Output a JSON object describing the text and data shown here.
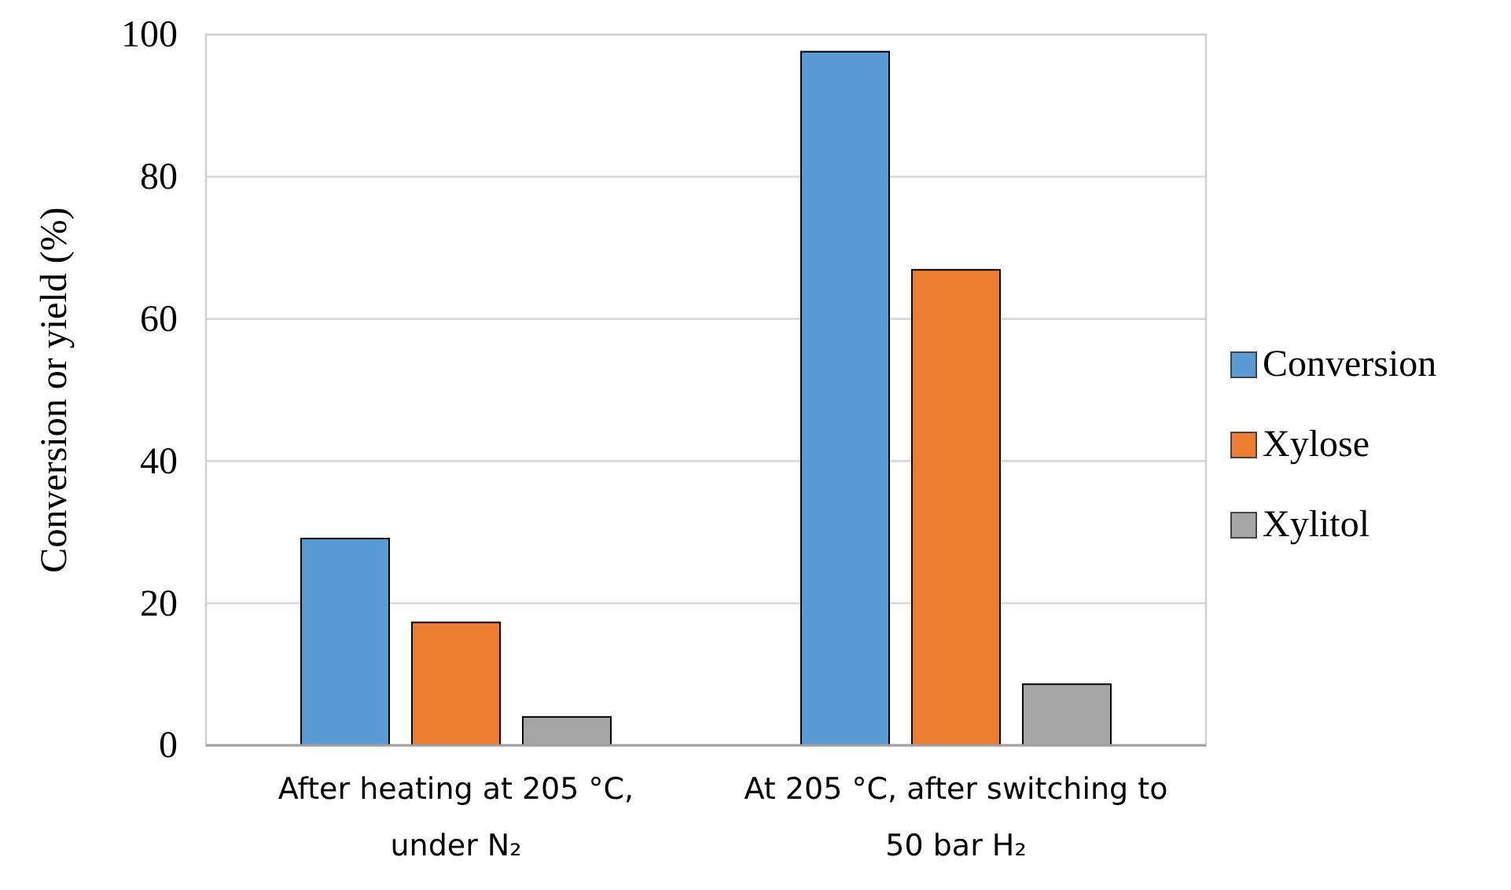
{
  "chart_data": {
    "type": "bar",
    "ylabel": "Conversion or yield (%)",
    "categories": [
      "After heating at 205 °C, under N₂",
      "At 205 °C, after switching to 50 bar H₂"
    ],
    "series": [
      {
        "name": "Conversion",
        "color": "#5b9bd5",
        "values": [
          29.1,
          97.6
        ]
      },
      {
        "name": "Xylose",
        "color": "#ed7d31",
        "values": [
          17.3,
          66.9
        ]
      },
      {
        "name": "Xylitol",
        "color": "#a5a5a5",
        "values": [
          4.0,
          8.6
        ]
      }
    ],
    "ylim": [
      0,
      100
    ],
    "yticks": [
      0,
      20,
      40,
      60,
      80,
      100
    ],
    "grid": "y",
    "legend": "right"
  }
}
